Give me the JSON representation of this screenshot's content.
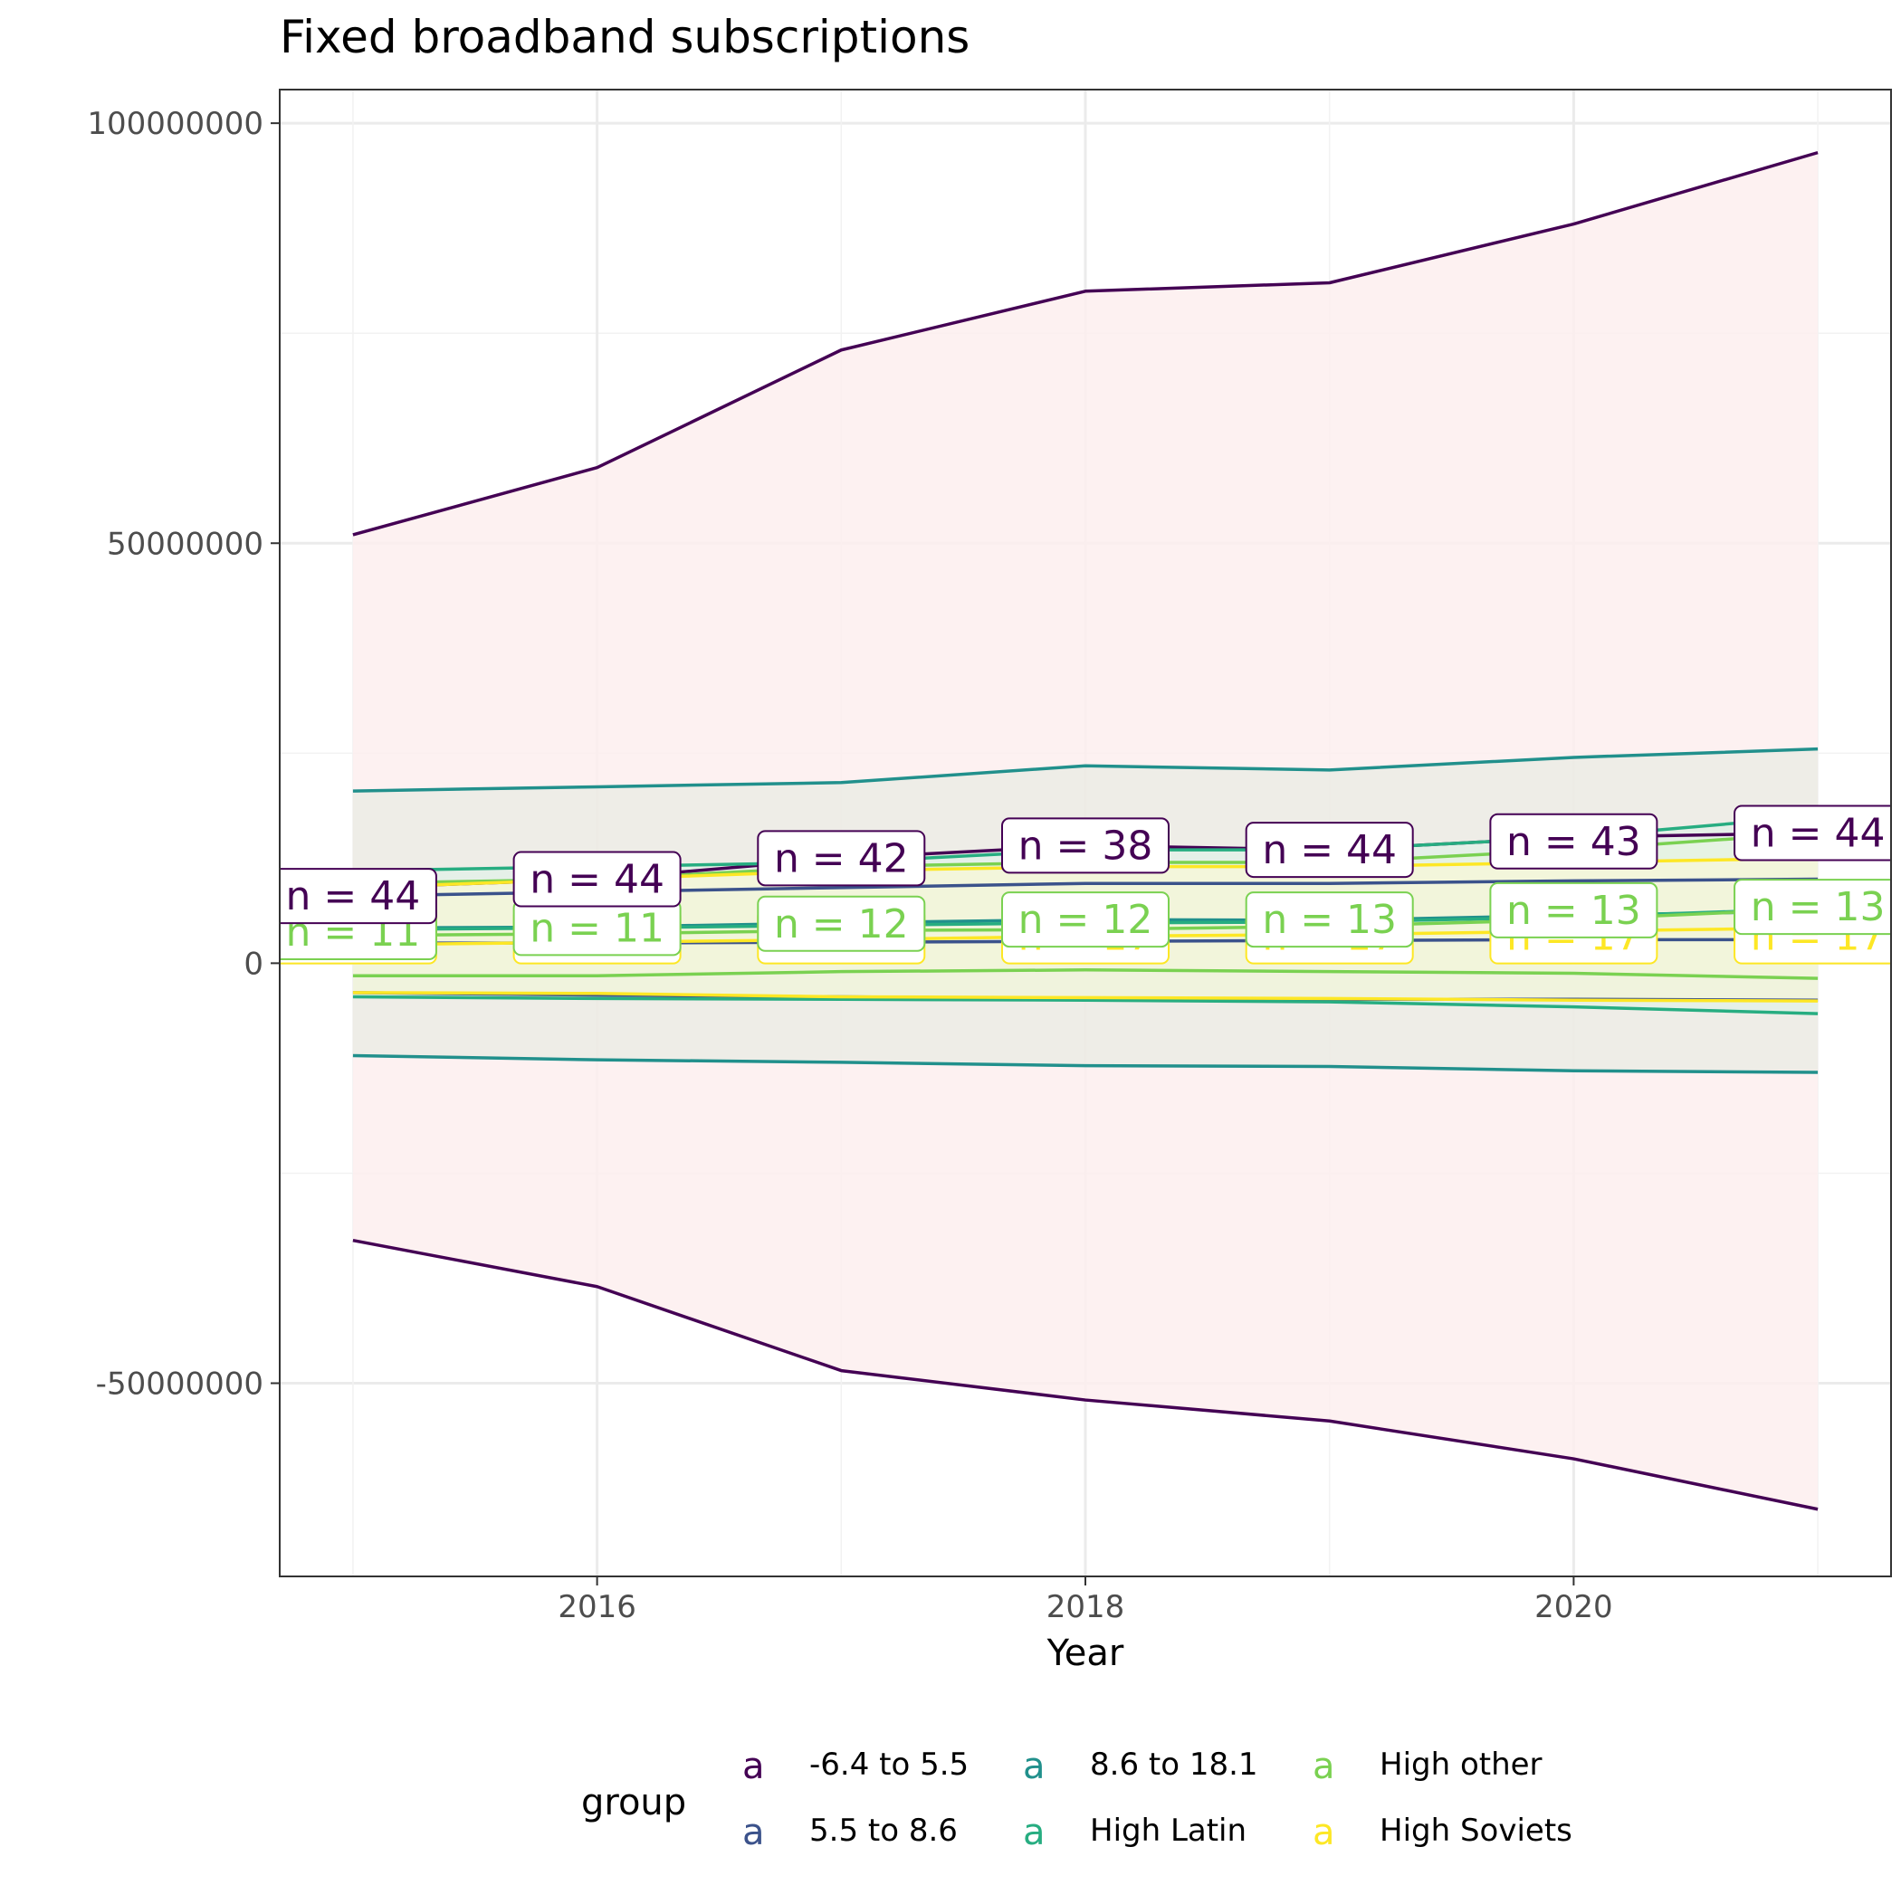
{
  "chart_data": {
    "type": "line",
    "title": "Fixed broadband subscriptions",
    "xlabel": "Year",
    "ylabel": "",
    "x": [
      2015,
      2016,
      2017,
      2018,
      2019,
      2020,
      2021
    ],
    "xlim": [
      2014.7,
      2021.3
    ],
    "ylim": [
      -73000000,
      104000000
    ],
    "x_ticks": [
      2016,
      2018,
      2020
    ],
    "x_tick_labels": [
      "2016",
      "2018",
      "2020"
    ],
    "y_ticks": [
      -50000000,
      0,
      50000000,
      100000000
    ],
    "y_tick_labels": [
      "-50000000",
      "0",
      "50000000",
      "100000000"
    ],
    "grid": true,
    "legend": {
      "title": "group",
      "position": "bottom",
      "key_glyph": "a",
      "entries": [
        "-6.4 to 5.5",
        "5.5 to 8.6",
        "8.6 to 18.1",
        "High Latin",
        "High other",
        "High Soviets"
      ]
    },
    "series": [
      {
        "name": "-6.4 to 5.5",
        "color": "#440154",
        "band_color": "#fdeeee",
        "mean": [
          9000000,
          10000000,
          12500000,
          14000000,
          13500000,
          15000000,
          15500000
        ],
        "upper": [
          51000000,
          59000000,
          73000000,
          80000000,
          81000000,
          88000000,
          96500000
        ],
        "lower": [
          -33000000,
          -38500000,
          -48500000,
          -52000000,
          -54500000,
          -59000000,
          -65000000
        ]
      },
      {
        "name": "5.5 to 8.6",
        "color": "#3b528b",
        "band_color": "#d2d9e4",
        "mean": [
          2400000,
          2400000,
          2500000,
          2600000,
          2700000,
          2800000,
          2800000
        ],
        "upper": [
          8000000,
          8500000,
          9000000,
          9500000,
          9500000,
          9800000,
          10000000
        ],
        "lower": [
          -3500000,
          -3800000,
          -4000000,
          -4200000,
          -4300000,
          -4300000,
          -4400000
        ]
      },
      {
        "name": "8.6 to 18.1",
        "color": "#21908c",
        "band_color": "#e2e9de",
        "mean": [
          4200000,
          4300000,
          4800000,
          5200000,
          5100000,
          5700000,
          6200000
        ],
        "upper": [
          20500000,
          21000000,
          21500000,
          23500000,
          23000000,
          24500000,
          25500000
        ],
        "lower": [
          -11000000,
          -11500000,
          -11800000,
          -12200000,
          -12300000,
          -12800000,
          -13000000
        ]
      },
      {
        "name": "High Latin",
        "color": "#27ad81",
        "band_color": "#dff2e9",
        "mean": [
          4000000,
          4200000,
          4500000,
          4800000,
          4900000,
          5500000,
          6500000
        ],
        "upper": [
          11000000,
          11500000,
          12000000,
          13500000,
          13500000,
          15000000,
          17500000
        ],
        "lower": [
          -4000000,
          -4200000,
          -4300000,
          -4400000,
          -4600000,
          -5200000,
          -6000000
        ]
      },
      {
        "name": "High other",
        "color": "#7ad151",
        "band_color": "#e8f6df",
        "mean": [
          3300000,
          3500000,
          3900000,
          4000000,
          4400000,
          5200000,
          6500000
        ],
        "upper": [
          9500000,
          10000000,
          11500000,
          12000000,
          12000000,
          13500000,
          15500000
        ],
        "lower": [
          -1500000,
          -1500000,
          -1000000,
          -800000,
          -1000000,
          -1200000,
          -1800000
        ]
      },
      {
        "name": "High Soviets",
        "color": "#fde725",
        "band_color": "#fdf8d5",
        "mean": [
          2200000,
          2500000,
          2800000,
          3200000,
          3400000,
          3800000,
          4200000
        ],
        "upper": [
          9000000,
          10000000,
          11000000,
          11500000,
          11500000,
          12000000,
          12500000
        ],
        "lower": [
          -3500000,
          -3600000,
          -4000000,
          -4100000,
          -4200000,
          -4400000,
          -4500000
        ]
      }
    ],
    "annotations": {
      "dark": [
        "n = 44",
        "n = 44",
        "n = 42",
        "n = 38",
        "n = 44",
        "n = 43",
        "n = 44"
      ],
      "green": [
        "n = 11",
        "n = 11",
        "n = 12",
        "n = 12",
        "n = 13",
        "n = 13",
        "n = 13"
      ],
      "yellow": [
        "n = 17",
        "n = 17",
        "n = 17",
        "n = 17",
        "n = 17",
        "n = 17",
        "n = 17"
      ],
      "dark_y": [
        8000000,
        10000000,
        12500000,
        14000000,
        13500000,
        14500000,
        15500000
      ],
      "green_y": [
        3700000,
        4200000,
        4700000,
        5200000,
        5200000,
        6300000,
        6700000
      ],
      "yellow_y": [
        3200000,
        3200000,
        3200000,
        3200000,
        3200000,
        3200000,
        3200000
      ]
    }
  }
}
